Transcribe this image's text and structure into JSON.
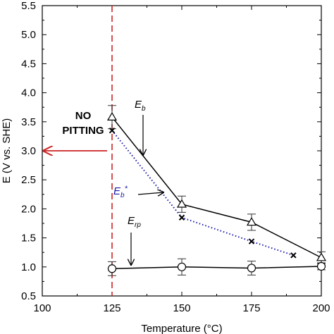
{
  "chart_data": {
    "type": "line",
    "xlabel": "Temperature (°C)",
    "ylabel": "E (V vs. SHE)",
    "xlim": [
      100,
      200
    ],
    "ylim": [
      0.5,
      5.5
    ],
    "xticks": [
      100,
      125,
      150,
      175,
      200
    ],
    "yticks": [
      0.5,
      1.0,
      1.5,
      2.0,
      2.5,
      3.0,
      3.5,
      4.0,
      4.5,
      5.0,
      5.5
    ],
    "xtick_labels": [
      "100",
      "125",
      "150",
      "175",
      "200"
    ],
    "ytick_labels": [
      "0.5",
      "1.0",
      "1.5",
      "2.0",
      "2.5",
      "3.0",
      "3.5",
      "4.0",
      "4.5",
      "5.0",
      "5.5"
    ],
    "series": [
      {
        "name": "Eb",
        "marker": "triangle",
        "line_style": "solid",
        "color": "#000000",
        "x": [
          125,
          150,
          175,
          200
        ],
        "y": [
          3.58,
          2.08,
          1.77,
          1.16
        ],
        "error": [
          0.2,
          0.14,
          0.14,
          0.1
        ]
      },
      {
        "name": "Eb*",
        "marker": "x",
        "line_style": "dotted",
        "color": "#1a1aa8",
        "x": [
          125,
          150,
          175,
          190
        ],
        "y": [
          3.35,
          1.85,
          1.44,
          1.2
        ]
      },
      {
        "name": "Erp",
        "marker": "circle",
        "line_style": "solid",
        "color": "#000000",
        "x": [
          125,
          150,
          175,
          200
        ],
        "y": [
          0.97,
          1.0,
          0.98,
          1.01
        ],
        "error": [
          0.12,
          0.14,
          0.12,
          0.06
        ]
      }
    ],
    "reference_line": {
      "x": 125,
      "color": "#cc2222",
      "style": "dashed"
    },
    "annotations": {
      "no_pitting_line1": "NO",
      "no_pitting_line2": "PITTING",
      "eb_main": "E",
      "eb_sub": "b",
      "ebstar_main": "E",
      "ebstar_sub": "b",
      "ebstar_sup": "*",
      "erp_main": "E",
      "erp_sub": "rp"
    },
    "annotation_colors": {
      "no_pitting_arrow": "#cc2222",
      "ebstar_label": "#1a1aa8"
    },
    "grid": false
  }
}
